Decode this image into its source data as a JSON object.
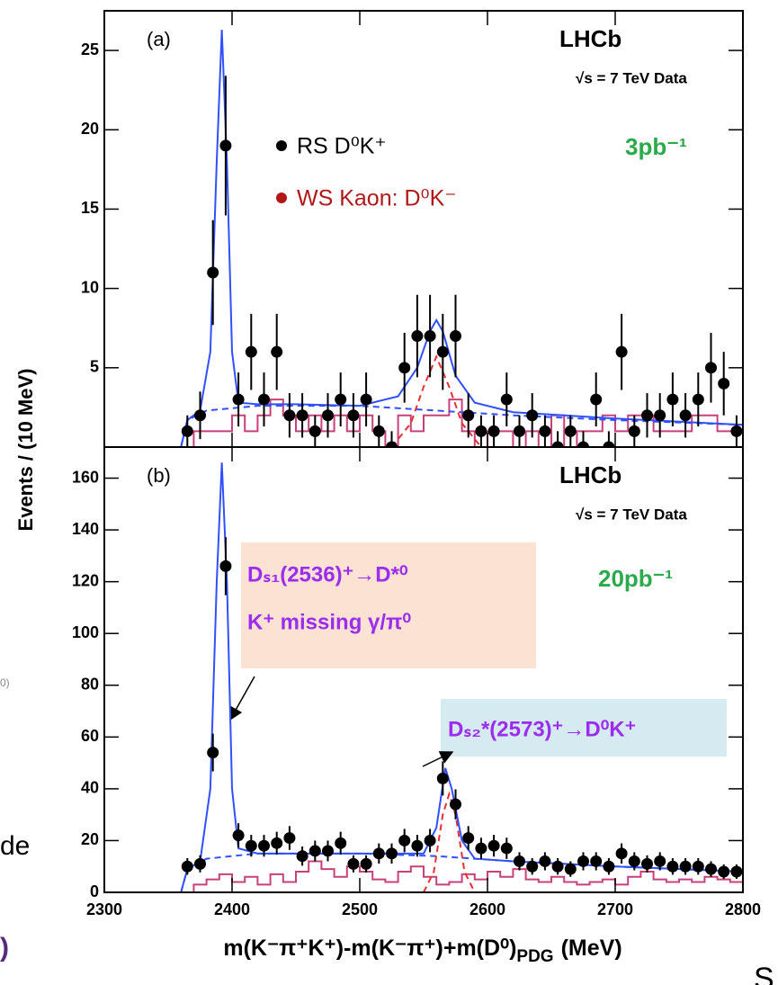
{
  "chart_data": [
    {
      "type": "scatter",
      "panel_label": "(a)",
      "experiment": "LHCb",
      "energy_label": "√s = 7 TeV Data",
      "lumi": "3pb⁻¹",
      "y_label": "Events / (10 MeV)",
      "xlim": [
        2300,
        2800
      ],
      "xticks": [
        2300,
        2400,
        2500,
        2600,
        2700,
        2800
      ],
      "xtick_labels": false,
      "ylim": [
        0,
        27.5
      ],
      "yticks": [
        5,
        10,
        15,
        20,
        25
      ],
      "series": [
        {
          "name": "WS Kaon: D⁰K⁻",
          "style": "step",
          "color": "#c8407a",
          "legend_color": "#b01818",
          "bins": [
            2360,
            2370,
            2380,
            2390,
            2400,
            2410,
            2420,
            2430,
            2440,
            2450,
            2460,
            2470,
            2480,
            2490,
            2500,
            2510,
            2520,
            2530,
            2540,
            2550,
            2560,
            2570,
            2580,
            2590,
            2600,
            2610,
            2620,
            2630,
            2640,
            2650,
            2660,
            2670,
            2680,
            2690,
            2700,
            2710,
            2720,
            2730,
            2740,
            2750,
            2760,
            2770,
            2780,
            2790,
            2800
          ],
          "values": [
            0,
            1,
            1,
            1,
            2,
            1,
            2,
            3,
            2,
            1,
            2,
            1,
            2,
            1,
            2,
            1,
            0,
            2,
            1,
            2,
            2,
            3,
            1,
            0,
            1,
            1,
            0,
            1,
            0,
            2,
            0,
            1,
            1,
            2,
            1,
            2,
            2,
            1,
            1,
            1,
            2,
            2,
            1,
            1
          ]
        },
        {
          "style": "dashed",
          "color": "#3050ff",
          "x": [
            2360,
            2365,
            2380,
            2420,
            2500,
            2560,
            2620,
            2700,
            2800
          ],
          "values": [
            0,
            1.7,
            2.3,
            2.6,
            2.6,
            2.3,
            2,
            1.7,
            1.4
          ]
        },
        {
          "style": "dashed",
          "color": "#e83030",
          "x": [
            2525,
            2540,
            2550,
            2560,
            2570,
            2580,
            2595
          ],
          "values": [
            0,
            1.5,
            3.8,
            5.7,
            3.8,
            1.5,
            0
          ]
        },
        {
          "style": "curve",
          "color": "#3050ff",
          "x": [
            2300,
            2360,
            2365,
            2375,
            2383,
            2388,
            2392,
            2396,
            2400,
            2405,
            2420,
            2450,
            2500,
            2530,
            2545,
            2555,
            2560,
            2565,
            2575,
            2590,
            2620,
            2700,
            2800
          ],
          "values": [
            0,
            0,
            1.7,
            2.3,
            6,
            18,
            26.3,
            18,
            6,
            2.8,
            2.7,
            2.7,
            2.6,
            3.2,
            5,
            7.3,
            8,
            7.3,
            4.5,
            2.8,
            2.2,
            1.8,
            1.4
          ]
        },
        {
          "name": "RS D⁰K⁺",
          "style": "points",
          "color": "#000000",
          "x": [
            2365,
            2375,
            2385,
            2395,
            2405,
            2415,
            2425,
            2435,
            2445,
            2455,
            2465,
            2475,
            2485,
            2495,
            2505,
            2515,
            2525,
            2535,
            2545,
            2555,
            2565,
            2575,
            2585,
            2595,
            2605,
            2615,
            2625,
            2635,
            2645,
            2655,
            2665,
            2675,
            2685,
            2695,
            2705,
            2715,
            2725,
            2735,
            2745,
            2755,
            2765,
            2775,
            2785,
            2795
          ],
          "values": [
            1,
            2,
            11,
            19,
            3,
            6,
            3,
            6,
            2,
            2,
            1,
            2,
            3,
            2,
            3,
            1,
            0,
            5,
            7,
            7,
            6,
            7,
            2,
            1,
            1,
            3,
            1,
            2,
            1,
            0,
            1,
            0,
            3,
            0,
            6,
            1,
            2,
            2,
            3,
            2,
            3,
            5,
            4,
            1
          ],
          "errors": [
            1,
            1.5,
            3.3,
            4.4,
            1.7,
            2.4,
            1.7,
            2.4,
            1.4,
            1.4,
            1,
            1.4,
            1.7,
            1.4,
            1.7,
            1,
            1,
            2.2,
            2.6,
            2.6,
            2.4,
            2.6,
            1.4,
            1,
            1,
            1.7,
            1,
            1.4,
            1,
            1,
            1,
            1,
            1.7,
            1,
            2.4,
            1,
            1.4,
            1.4,
            1.7,
            1.4,
            1.7,
            2.2,
            2,
            1
          ]
        }
      ]
    },
    {
      "type": "scatter",
      "panel_label": "(b)",
      "experiment": "LHCb",
      "energy_label": "√s = 7 TeV Data",
      "lumi": "20pb⁻¹",
      "x_label": {
        "main": "m(K⁻π⁺K⁺)-m(K⁻π⁺)+m(D⁰)",
        "sub": "PDG",
        "unit": "(MeV)"
      },
      "annotations": [
        "Dₛ₁(2536)⁺→D*⁰",
        "K⁺ missing γ/π⁰",
        "Dₛ₂*(2573)⁺→D⁰K⁺"
      ],
      "xlim": [
        2300,
        2800
      ],
      "xticks": [
        2300,
        2400,
        2500,
        2600,
        2700,
        2800
      ],
      "xtick_labels": true,
      "ylim": [
        0,
        172
      ],
      "yticks": [
        0,
        20,
        40,
        60,
        80,
        100,
        120,
        140,
        160
      ],
      "series": [
        {
          "style": "step",
          "color": "#c8407a",
          "bins": [
            2360,
            2370,
            2380,
            2390,
            2400,
            2410,
            2420,
            2430,
            2440,
            2450,
            2460,
            2470,
            2480,
            2490,
            2500,
            2510,
            2520,
            2530,
            2540,
            2550,
            2560,
            2570,
            2580,
            2590,
            2600,
            2610,
            2620,
            2630,
            2640,
            2650,
            2660,
            2670,
            2680,
            2690,
            2700,
            2710,
            2720,
            2730,
            2740,
            2750,
            2760,
            2770,
            2780,
            2790,
            2800
          ],
          "values": [
            0,
            3,
            5,
            7,
            4,
            6,
            3,
            7,
            4,
            8,
            12,
            9,
            6,
            10,
            8,
            5,
            4,
            8,
            10,
            6,
            3,
            4,
            7,
            5,
            8,
            6,
            9,
            5,
            4,
            6,
            4,
            3,
            4,
            5,
            3,
            6,
            8,
            5,
            4,
            5,
            4,
            6,
            5,
            4
          ]
        },
        {
          "style": "dashed",
          "color": "#3050ff",
          "x": [
            2360,
            2365,
            2380,
            2420,
            2500,
            2560,
            2620,
            2700,
            2800
          ],
          "values": [
            0,
            9,
            13,
            15,
            15,
            14,
            12,
            10,
            8
          ]
        },
        {
          "style": "dashed",
          "color": "#e83030",
          "x": [
            2550,
            2558,
            2565,
            2570,
            2575,
            2582,
            2590
          ],
          "values": [
            0,
            8,
            30,
            38,
            30,
            8,
            0
          ]
        },
        {
          "style": "curve",
          "color": "#3050ff",
          "x": [
            2300,
            2360,
            2365,
            2375,
            2383,
            2388,
            2392,
            2396,
            2400,
            2405,
            2420,
            2500,
            2550,
            2560,
            2567,
            2572,
            2580,
            2590,
            2620,
            2700,
            2800
          ],
          "values": [
            0,
            0,
            9,
            12,
            40,
            120,
            166,
            120,
            40,
            17,
            15,
            15,
            15,
            25,
            48,
            40,
            20,
            13,
            12,
            10,
            8
          ]
        },
        {
          "style": "points",
          "color": "#000000",
          "x": [
            2365,
            2375,
            2385,
            2395,
            2405,
            2415,
            2425,
            2435,
            2445,
            2455,
            2465,
            2475,
            2485,
            2495,
            2505,
            2515,
            2525,
            2535,
            2545,
            2555,
            2565,
            2575,
            2585,
            2595,
            2605,
            2615,
            2625,
            2635,
            2645,
            2655,
            2665,
            2675,
            2685,
            2695,
            2705,
            2715,
            2725,
            2735,
            2745,
            2755,
            2765,
            2775,
            2785,
            2795
          ],
          "values": [
            10,
            11,
            54,
            126,
            22,
            18,
            18,
            19,
            21,
            14,
            16,
            16,
            19,
            11,
            11,
            15,
            15,
            20,
            18,
            20,
            44,
            34,
            21,
            17,
            18,
            17,
            12,
            10,
            12,
            10,
            9,
            12,
            12,
            10,
            15,
            12,
            11,
            12,
            10,
            10,
            10,
            9,
            8,
            8
          ],
          "errors": [
            3.2,
            3.3,
            7.3,
            11.2,
            4.7,
            4.2,
            4.2,
            4.4,
            4.6,
            3.7,
            4,
            4,
            4.4,
            3.3,
            3.3,
            3.9,
            3.9,
            4.5,
            4.2,
            4.5,
            6.6,
            5.8,
            4.6,
            4.1,
            4.2,
            4.1,
            3.5,
            3.2,
            3.5,
            3.2,
            3,
            3.5,
            3.5,
            3.2,
            3.9,
            3.5,
            3.3,
            3.5,
            3.2,
            3.2,
            3.2,
            3,
            2.8,
            2.8
          ]
        }
      ]
    }
  ],
  "slide_fragments": [
    "de",
    ")",
    "0)",
    "S"
  ]
}
